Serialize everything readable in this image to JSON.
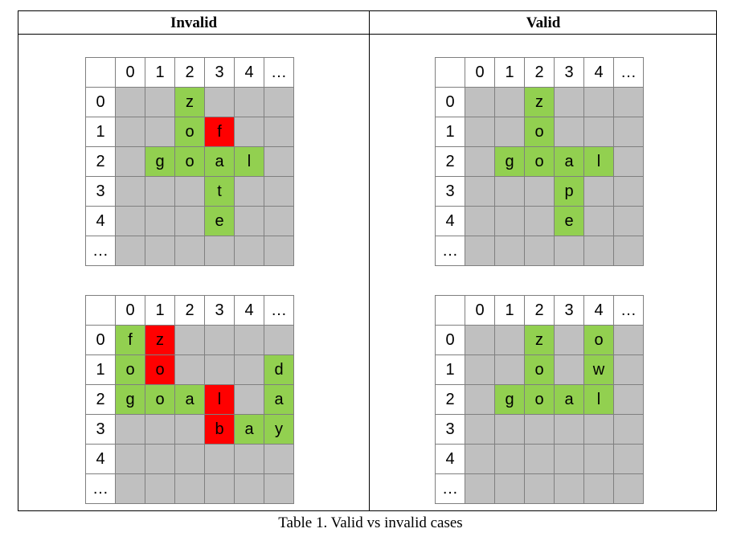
{
  "headers": {
    "left": "Invalid",
    "right": "Valid"
  },
  "caption": "Table 1. Valid vs invalid cases",
  "col_labels": [
    "0",
    "1",
    "2",
    "3",
    "4",
    "…"
  ],
  "row_labels": [
    "0",
    "1",
    "2",
    "3",
    "4",
    "…"
  ],
  "row_labels_tall": [
    "0",
    "1",
    "2",
    "3",
    "4",
    "…"
  ],
  "colors": {
    "empty": "#c0c0c0",
    "valid_letter": "#92d050",
    "conflict": "#ff0000",
    "header": "#ffffff"
  },
  "grids": [
    {
      "id": "invalid-1",
      "cells": [
        [
          "",
          "",
          "z",
          "",
          "",
          ""
        ],
        [
          "",
          "",
          "o",
          "f",
          "",
          ""
        ],
        [
          "",
          "g",
          "o",
          "a",
          "l",
          ""
        ],
        [
          "",
          "",
          "",
          "t",
          "",
          ""
        ],
        [
          "",
          "",
          "",
          "e",
          "",
          ""
        ],
        [
          "",
          "",
          "",
          "",
          "",
          ""
        ]
      ],
      "state": [
        [
          "",
          "",
          "g",
          "",
          "",
          ""
        ],
        [
          "",
          "",
          "g",
          "r",
          "",
          ""
        ],
        [
          "",
          "g",
          "g",
          "g",
          "g",
          ""
        ],
        [
          "",
          "",
          "",
          "g",
          "",
          ""
        ],
        [
          "",
          "",
          "",
          "g",
          "",
          ""
        ],
        [
          "",
          "",
          "",
          "",
          "",
          ""
        ]
      ]
    },
    {
      "id": "valid-1",
      "cells": [
        [
          "",
          "",
          "z",
          "",
          "",
          ""
        ],
        [
          "",
          "",
          "o",
          "",
          "",
          ""
        ],
        [
          "",
          "g",
          "o",
          "a",
          "l",
          ""
        ],
        [
          "",
          "",
          "",
          "p",
          "",
          ""
        ],
        [
          "",
          "",
          "",
          "e",
          "",
          ""
        ],
        [
          "",
          "",
          "",
          "",
          "",
          ""
        ]
      ],
      "state": [
        [
          "",
          "",
          "g",
          "",
          "",
          ""
        ],
        [
          "",
          "",
          "g",
          "",
          "",
          ""
        ],
        [
          "",
          "g",
          "g",
          "g",
          "g",
          ""
        ],
        [
          "",
          "",
          "",
          "g",
          "",
          ""
        ],
        [
          "",
          "",
          "",
          "g",
          "",
          ""
        ],
        [
          "",
          "",
          "",
          "",
          "",
          ""
        ]
      ]
    },
    {
      "id": "invalid-2",
      "cells": [
        [
          "f",
          "z",
          "",
          "",
          "",
          ""
        ],
        [
          "o",
          "o",
          "",
          "",
          "",
          "d"
        ],
        [
          "g",
          "o",
          "a",
          "l",
          "",
          "a"
        ],
        [
          "",
          "",
          "",
          "b",
          "a",
          "y"
        ],
        [
          "",
          "",
          "",
          "",
          "",
          ""
        ],
        [
          "",
          "",
          "",
          "",
          "",
          ""
        ]
      ],
      "state": [
        [
          "g",
          "r",
          "",
          "",
          "",
          ""
        ],
        [
          "g",
          "r",
          "",
          "",
          "",
          "g"
        ],
        [
          "g",
          "g",
          "g",
          "r",
          "",
          "g"
        ],
        [
          "",
          "",
          "",
          "r",
          "g",
          "g"
        ],
        [
          "",
          "",
          "",
          "",
          "",
          ""
        ],
        [
          "",
          "",
          "",
          "",
          "",
          ""
        ]
      ]
    },
    {
      "id": "valid-2",
      "cells": [
        [
          "",
          "",
          "z",
          "",
          "o",
          ""
        ],
        [
          "",
          "",
          "o",
          "",
          "w",
          ""
        ],
        [
          "",
          "g",
          "o",
          "a",
          "l",
          ""
        ],
        [
          "",
          "",
          "",
          "",
          "",
          ""
        ],
        [
          "",
          "",
          "",
          "",
          "",
          ""
        ],
        [
          "",
          "",
          "",
          "",
          "",
          ""
        ]
      ],
      "state": [
        [
          "",
          "",
          "g",
          "",
          "g",
          ""
        ],
        [
          "",
          "",
          "g",
          "",
          "g",
          ""
        ],
        [
          "",
          "g",
          "g",
          "g",
          "g",
          ""
        ],
        [
          "",
          "",
          "",
          "",
          "",
          ""
        ],
        [
          "",
          "",
          "",
          "",
          "",
          ""
        ],
        [
          "",
          "",
          "",
          "",
          "",
          ""
        ]
      ]
    }
  ]
}
